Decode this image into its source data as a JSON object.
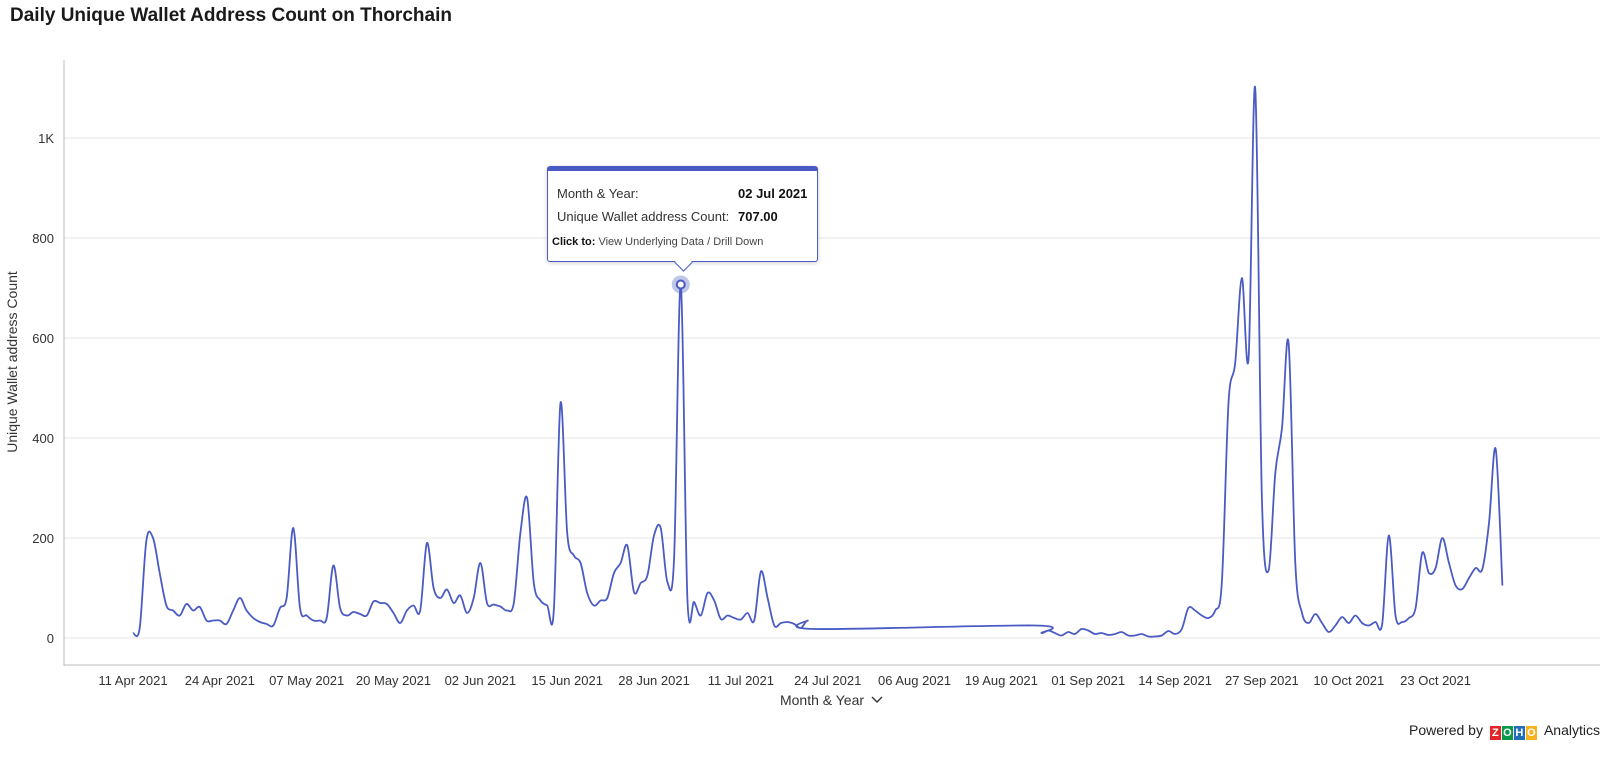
{
  "title": "Daily Unique Wallet Address Count on Thorchain",
  "chart_data": {
    "type": "line",
    "title": "Daily Unique Wallet Address Count on Thorchain",
    "xlabel": "Month & Year",
    "ylabel": "Unique Wallet address Count",
    "ylim": [
      0,
      1100
    ],
    "yticks": [
      0,
      200,
      400,
      600,
      800,
      1000
    ],
    "ytick_labels": [
      "0",
      "200",
      "400",
      "600",
      "800",
      "1K"
    ],
    "xticks": [
      "11 Apr 2021",
      "24 Apr 2021",
      "07 May 2021",
      "20 May 2021",
      "02 Jun 2021",
      "15 Jun 2021",
      "28 Jun 2021",
      "11 Jul 2021",
      "24 Jul 2021",
      "06 Aug 2021",
      "19 Aug 2021",
      "01 Sep 2021",
      "14 Sep 2021",
      "27 Sep 2021",
      "10 Oct 2021",
      "23 Oct 2021"
    ],
    "grid": true,
    "line_color": "#4a5bc4",
    "series": [
      {
        "name": "",
        "points": [
          [
            "2021-04-11",
            10
          ],
          [
            "2021-04-12",
            20
          ],
          [
            "2021-04-13",
            195
          ],
          [
            "2021-04-14",
            200
          ],
          [
            "2021-04-15",
            130
          ],
          [
            "2021-04-16",
            65
          ],
          [
            "2021-04-17",
            55
          ],
          [
            "2021-04-18",
            45
          ],
          [
            "2021-04-19",
            68
          ],
          [
            "2021-04-20",
            55
          ],
          [
            "2021-04-21",
            62
          ],
          [
            "2021-04-22",
            35
          ],
          [
            "2021-04-23",
            35
          ],
          [
            "2021-04-24",
            35
          ],
          [
            "2021-04-25",
            28
          ],
          [
            "2021-04-26",
            55
          ],
          [
            "2021-04-27",
            80
          ],
          [
            "2021-04-28",
            55
          ],
          [
            "2021-04-29",
            40
          ],
          [
            "2021-04-30",
            32
          ],
          [
            "2021-05-01",
            28
          ],
          [
            "2021-05-02",
            25
          ],
          [
            "2021-05-03",
            60
          ],
          [
            "2021-05-04",
            80
          ],
          [
            "2021-05-05",
            220
          ],
          [
            "2021-05-06",
            60
          ],
          [
            "2021-05-07",
            45
          ],
          [
            "2021-05-08",
            35
          ],
          [
            "2021-05-09",
            35
          ],
          [
            "2021-05-10",
            40
          ],
          [
            "2021-05-11",
            145
          ],
          [
            "2021-05-12",
            60
          ],
          [
            "2021-05-13",
            45
          ],
          [
            "2021-05-14",
            52
          ],
          [
            "2021-05-15",
            48
          ],
          [
            "2021-05-16",
            45
          ],
          [
            "2021-05-17",
            73
          ],
          [
            "2021-05-18",
            70
          ],
          [
            "2021-05-19",
            68
          ],
          [
            "2021-05-20",
            50
          ],
          [
            "2021-05-21",
            30
          ],
          [
            "2021-05-22",
            55
          ],
          [
            "2021-05-23",
            65
          ],
          [
            "2021-05-24",
            55
          ],
          [
            "2021-05-25",
            190
          ],
          [
            "2021-05-26",
            100
          ],
          [
            "2021-05-27",
            80
          ],
          [
            "2021-05-28",
            97
          ],
          [
            "2021-05-29",
            70
          ],
          [
            "2021-05-30",
            85
          ],
          [
            "2021-05-31",
            50
          ],
          [
            "2021-06-01",
            80
          ],
          [
            "2021-06-02",
            150
          ],
          [
            "2021-06-03",
            70
          ],
          [
            "2021-06-04",
            67
          ],
          [
            "2021-06-05",
            63
          ],
          [
            "2021-06-06",
            55
          ],
          [
            "2021-06-07",
            70
          ],
          [
            "2021-06-08",
            210
          ],
          [
            "2021-06-09",
            280
          ],
          [
            "2021-06-10",
            110
          ],
          [
            "2021-06-11",
            75
          ],
          [
            "2021-06-12",
            65
          ],
          [
            "2021-06-13",
            55
          ],
          [
            "2021-06-14",
            470
          ],
          [
            "2021-06-15",
            210
          ],
          [
            "2021-06-16",
            165
          ],
          [
            "2021-06-17",
            150
          ],
          [
            "2021-06-18",
            90
          ],
          [
            "2021-06-19",
            65
          ],
          [
            "2021-06-20",
            75
          ],
          [
            "2021-06-21",
            80
          ],
          [
            "2021-06-22",
            130
          ],
          [
            "2021-06-23",
            150
          ],
          [
            "2021-06-24",
            185
          ],
          [
            "2021-06-25",
            92
          ],
          [
            "2021-06-26",
            110
          ],
          [
            "2021-06-27",
            125
          ],
          [
            "2021-06-28",
            205
          ],
          [
            "2021-06-29",
            220
          ],
          [
            "2021-06-30",
            112
          ],
          [
            "2021-07-01",
            160
          ],
          [
            "2021-07-02",
            707
          ],
          [
            "2021-07-03",
            78
          ],
          [
            "2021-07-04",
            72
          ],
          [
            "2021-07-05",
            45
          ],
          [
            "2021-07-06",
            90
          ],
          [
            "2021-07-07",
            75
          ],
          [
            "2021-07-08",
            38
          ],
          [
            "2021-07-09",
            45
          ],
          [
            "2021-07-10",
            40
          ],
          [
            "2021-07-11",
            37
          ],
          [
            "2021-07-12",
            50
          ],
          [
            "2021-07-13",
            35
          ],
          [
            "2021-07-14",
            133
          ],
          [
            "2021-07-15",
            80
          ],
          [
            "2021-07-16",
            25
          ],
          [
            "2021-07-17",
            30
          ],
          [
            "2021-07-18",
            32
          ],
          [
            "2021-07-19",
            28
          ],
          [
            "2021-07-20",
            20
          ],
          [
            "2021-07-21",
            35
          ],
          [
            "2021-07-22",
            18
          ],
          [
            "2021-08-24",
            25
          ],
          [
            "2021-08-25",
            10
          ],
          [
            "2021-08-26",
            15
          ],
          [
            "2021-08-27",
            10
          ],
          [
            "2021-08-28",
            5
          ],
          [
            "2021-08-29",
            12
          ],
          [
            "2021-08-30",
            8
          ],
          [
            "2021-08-31",
            18
          ],
          [
            "2021-09-01",
            15
          ],
          [
            "2021-09-02",
            8
          ],
          [
            "2021-09-03",
            10
          ],
          [
            "2021-09-04",
            6
          ],
          [
            "2021-09-05",
            8
          ],
          [
            "2021-09-06",
            12
          ],
          [
            "2021-09-07",
            5
          ],
          [
            "2021-09-08",
            5
          ],
          [
            "2021-09-09",
            8
          ],
          [
            "2021-09-10",
            3
          ],
          [
            "2021-09-11",
            3
          ],
          [
            "2021-09-12",
            5
          ],
          [
            "2021-09-13",
            14
          ],
          [
            "2021-09-14",
            8
          ],
          [
            "2021-09-15",
            18
          ],
          [
            "2021-09-16",
            60
          ],
          [
            "2021-09-17",
            55
          ],
          [
            "2021-09-18",
            45
          ],
          [
            "2021-09-19",
            40
          ],
          [
            "2021-09-20",
            55
          ],
          [
            "2021-09-21",
            110
          ],
          [
            "2021-09-22",
            470
          ],
          [
            "2021-09-23",
            550
          ],
          [
            "2021-09-24",
            720
          ],
          [
            "2021-09-25",
            560
          ],
          [
            "2021-09-26",
            1100
          ],
          [
            "2021-09-27",
            280
          ],
          [
            "2021-09-28",
            135
          ],
          [
            "2021-09-29",
            330
          ],
          [
            "2021-09-30",
            420
          ],
          [
            "2021-10-01",
            590
          ],
          [
            "2021-10-02",
            150
          ],
          [
            "2021-10-03",
            50
          ],
          [
            "2021-10-04",
            30
          ],
          [
            "2021-10-05",
            48
          ],
          [
            "2021-10-06",
            30
          ],
          [
            "2021-10-07",
            12
          ],
          [
            "2021-10-08",
            25
          ],
          [
            "2021-10-09",
            42
          ],
          [
            "2021-10-10",
            30
          ],
          [
            "2021-10-11",
            45
          ],
          [
            "2021-10-12",
            30
          ],
          [
            "2021-10-13",
            25
          ],
          [
            "2021-10-14",
            32
          ],
          [
            "2021-10-15",
            28
          ],
          [
            "2021-10-16",
            205
          ],
          [
            "2021-10-17",
            45
          ],
          [
            "2021-10-18",
            32
          ],
          [
            "2021-10-19",
            40
          ],
          [
            "2021-10-20",
            60
          ],
          [
            "2021-10-21",
            170
          ],
          [
            "2021-10-22",
            130
          ],
          [
            "2021-10-23",
            140
          ],
          [
            "2021-10-24",
            200
          ],
          [
            "2021-10-25",
            150
          ],
          [
            "2021-10-26",
            105
          ],
          [
            "2021-10-27",
            98
          ],
          [
            "2021-10-28",
            120
          ],
          [
            "2021-10-29",
            140
          ],
          [
            "2021-10-30",
            138
          ],
          [
            "2021-10-31",
            230
          ],
          [
            "2021-11-01",
            378
          ],
          [
            "2021-11-02",
            105
          ]
        ]
      }
    ],
    "highlight": {
      "date": "2021-07-02",
      "value": 707
    }
  },
  "tooltip": {
    "label1": "Month & Year:",
    "value1": "02 Jul 2021",
    "label2": "Unique Wallet address Count:",
    "value2": "707.00",
    "click_prefix": "Click to:",
    "click_text": "View Underlying Data / Drill Down"
  },
  "footer": {
    "powered_by": "Powered by",
    "brand_letters": [
      "Z",
      "O",
      "H",
      "O"
    ],
    "brand_colors": [
      "#e42527",
      "#089949",
      "#226db4",
      "#f9b21d"
    ],
    "brand_text": "Analytics"
  }
}
